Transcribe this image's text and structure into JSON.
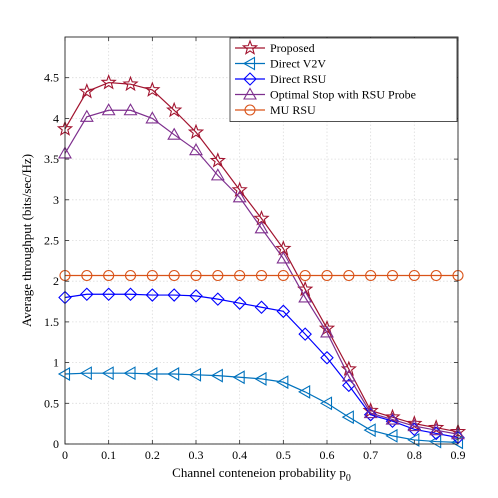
{
  "chart_data": {
    "type": "line",
    "xlabel": "Channel conteneion probability p",
    "xlabel_subscript": "0",
    "ylabel": "Average throughput (bits/sec/Hz)",
    "xlim": [
      0,
      0.9
    ],
    "ylim": [
      0,
      5
    ],
    "xticks": [
      0,
      0.1,
      0.2,
      0.3,
      0.4,
      0.5,
      0.6,
      0.7,
      0.8,
      0.9
    ],
    "yticks": [
      0,
      0.5,
      1,
      1.5,
      2,
      2.5,
      3,
      3.5,
      4,
      4.5
    ],
    "xtick_labels": [
      "0",
      "0.1",
      "0.2",
      "0.3",
      "0.4",
      "0.5",
      "0.6",
      "0.7",
      "0.8",
      "0.9"
    ],
    "ytick_labels": [
      "0",
      "0.5",
      "1",
      "1.5",
      "2",
      "2.5",
      "3",
      "3.5",
      "4",
      "4.5"
    ],
    "grid": true,
    "legend_position": "top-right",
    "x": [
      0,
      0.05,
      0.1,
      0.15,
      0.2,
      0.25,
      0.3,
      0.35,
      0.4,
      0.45,
      0.5,
      0.55,
      0.6,
      0.65,
      0.7,
      0.75,
      0.8,
      0.85,
      0.9
    ],
    "series": [
      {
        "name": "Proposed",
        "color": "#a2142f",
        "marker": "star",
        "values": [
          3.87,
          4.33,
          4.44,
          4.42,
          4.35,
          4.1,
          3.83,
          3.48,
          3.12,
          2.77,
          2.4,
          1.9,
          1.42,
          0.92,
          0.41,
          0.33,
          0.25,
          0.2,
          0.15
        ]
      },
      {
        "name": "Direct V2V",
        "color": "#0072bd",
        "marker": "triangle-left",
        "values": [
          0.86,
          0.87,
          0.87,
          0.87,
          0.86,
          0.86,
          0.85,
          0.84,
          0.82,
          0.8,
          0.76,
          0.64,
          0.5,
          0.33,
          0.17,
          0.1,
          0.05,
          0.03,
          0.02
        ]
      },
      {
        "name": "Direct RSU",
        "color": "#0000ff",
        "marker": "diamond",
        "values": [
          1.8,
          1.84,
          1.84,
          1.84,
          1.83,
          1.83,
          1.82,
          1.78,
          1.73,
          1.68,
          1.63,
          1.35,
          1.06,
          0.72,
          0.36,
          0.28,
          0.18,
          0.13,
          0.08
        ]
      },
      {
        "name": "Optimal Stop with RSU Probe",
        "color": "#7e2f8e",
        "marker": "triangle-up",
        "values": [
          3.57,
          4.02,
          4.1,
          4.1,
          4.0,
          3.8,
          3.61,
          3.3,
          3.03,
          2.65,
          2.28,
          1.8,
          1.37,
          0.83,
          0.38,
          0.3,
          0.22,
          0.17,
          0.12
        ]
      },
      {
        "name": "MU RSU",
        "color": "#d95319",
        "marker": "circle",
        "values": [
          2.07,
          2.07,
          2.07,
          2.07,
          2.07,
          2.07,
          2.07,
          2.07,
          2.07,
          2.07,
          2.07,
          2.07,
          2.07,
          2.07,
          2.07,
          2.07,
          2.07,
          2.07,
          2.07
        ]
      }
    ]
  }
}
